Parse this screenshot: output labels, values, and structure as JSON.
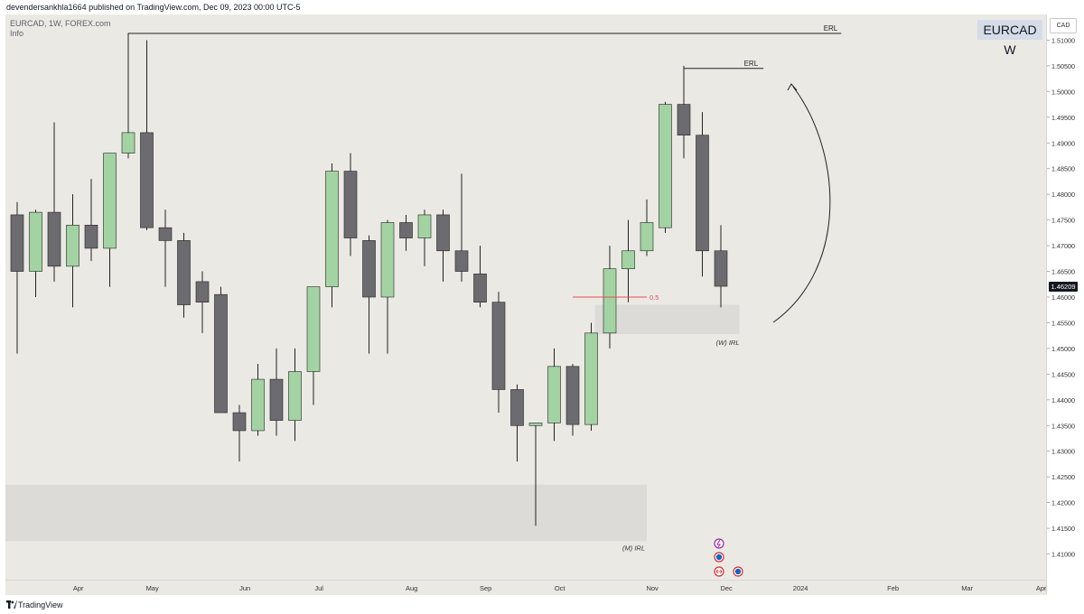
{
  "header": {
    "publish_line": "devendersankhla1664 published on TradingView.com, Dec 09, 2023 00:00 UTC-5"
  },
  "legend": {
    "symbol_line": "EURCAD, 1W, FOREX.com",
    "info_label": "Info"
  },
  "title_badge": "EURCAD W",
  "currency_button": "CAD",
  "last_price_label": "1.46209",
  "footer": {
    "brand": "TradingView"
  },
  "colors": {
    "up": "#a3d3a3",
    "down": "#6c6b70",
    "wick": "#222222",
    "zone": "#dcdbd7",
    "fib": "#e8504f"
  },
  "chart_data": {
    "type": "candlestick",
    "timeframe": "1W",
    "ylim": [
      1.405,
      1.515
    ],
    "y_ticks": [
      1.41,
      1.415,
      1.42,
      1.425,
      1.43,
      1.435,
      1.44,
      1.445,
      1.45,
      1.455,
      1.46,
      1.465,
      1.47,
      1.475,
      1.48,
      1.485,
      1.49,
      1.495,
      1.5,
      1.505,
      1.51
    ],
    "y_tick_labels": [
      "1.41000",
      "1.41500",
      "1.42000",
      "1.42500",
      "1.43000",
      "1.43500",
      "1.44000",
      "1.44500",
      "1.45000",
      "1.45500",
      "1.46000",
      "1.46500",
      "1.47000",
      "1.47500",
      "1.48000",
      "1.48500",
      "1.49000",
      "1.49500",
      "1.50000",
      "1.50500",
      "1.51000"
    ],
    "x_labels": [
      {
        "label": "Apr",
        "idx": 3.3
      },
      {
        "label": "May",
        "idx": 7.3
      },
      {
        "label": "Jun",
        "idx": 12.3
      },
      {
        "label": "Jul",
        "idx": 16.3
      },
      {
        "label": "Aug",
        "idx": 21.3
      },
      {
        "label": "Sep",
        "idx": 25.3
      },
      {
        "label": "Oct",
        "idx": 29.3
      },
      {
        "label": "Nov",
        "idx": 34.3
      },
      {
        "label": "Dec",
        "idx": 38.3
      },
      {
        "label": "2024",
        "idx": 42.3
      },
      {
        "label": "Feb",
        "idx": 47.3
      },
      {
        "label": "Mar",
        "idx": 51.3
      },
      {
        "label": "Apr",
        "idx": 55.3
      }
    ],
    "candles": [
      {
        "o": 1.476,
        "h": 1.4785,
        "l": 1.449,
        "c": 1.465
      },
      {
        "o": 1.465,
        "h": 1.477,
        "l": 1.46,
        "c": 1.4765
      },
      {
        "o": 1.4765,
        "h": 1.494,
        "l": 1.463,
        "c": 1.466
      },
      {
        "o": 1.466,
        "h": 1.48,
        "l": 1.458,
        "c": 1.474
      },
      {
        "o": 1.474,
        "h": 1.483,
        "l": 1.467,
        "c": 1.4695
      },
      {
        "o": 1.4695,
        "h": 1.488,
        "l": 1.462,
        "c": 1.488
      },
      {
        "o": 1.488,
        "h": 1.511,
        "l": 1.487,
        "c": 1.492
      },
      {
        "o": 1.492,
        "h": 1.51,
        "l": 1.473,
        "c": 1.4735
      },
      {
        "o": 1.4735,
        "h": 1.477,
        "l": 1.462,
        "c": 1.471
      },
      {
        "o": 1.471,
        "h": 1.4725,
        "l": 1.456,
        "c": 1.4585
      },
      {
        "o": 1.463,
        "h": 1.465,
        "l": 1.453,
        "c": 1.459
      },
      {
        "o": 1.4605,
        "h": 1.462,
        "l": 1.4375,
        "c": 1.4375
      },
      {
        "o": 1.4375,
        "h": 1.439,
        "l": 1.428,
        "c": 1.434
      },
      {
        "o": 1.434,
        "h": 1.447,
        "l": 1.433,
        "c": 1.444
      },
      {
        "o": 1.444,
        "h": 1.45,
        "l": 1.433,
        "c": 1.436
      },
      {
        "o": 1.436,
        "h": 1.45,
        "l": 1.432,
        "c": 1.4455
      },
      {
        "o": 1.4455,
        "h": 1.462,
        "l": 1.439,
        "c": 1.462
      },
      {
        "o": 1.462,
        "h": 1.486,
        "l": 1.458,
        "c": 1.4845
      },
      {
        "o": 1.4845,
        "h": 1.488,
        "l": 1.468,
        "c": 1.4715
      },
      {
        "o": 1.471,
        "h": 1.472,
        "l": 1.449,
        "c": 1.46
      },
      {
        "o": 1.46,
        "h": 1.475,
        "l": 1.449,
        "c": 1.4745
      },
      {
        "o": 1.4745,
        "h": 1.476,
        "l": 1.469,
        "c": 1.4715
      },
      {
        "o": 1.4715,
        "h": 1.477,
        "l": 1.466,
        "c": 1.476
      },
      {
        "o": 1.476,
        "h": 1.477,
        "l": 1.463,
        "c": 1.469
      },
      {
        "o": 1.469,
        "h": 1.484,
        "l": 1.463,
        "c": 1.465
      },
      {
        "o": 1.4645,
        "h": 1.47,
        "l": 1.458,
        "c": 1.459
      },
      {
        "o": 1.459,
        "h": 1.461,
        "l": 1.4375,
        "c": 1.442
      },
      {
        "o": 1.442,
        "h": 1.443,
        "l": 1.428,
        "c": 1.435
      },
      {
        "o": 1.435,
        "h": 1.4355,
        "l": 1.4155,
        "c": 1.4355
      },
      {
        "o": 1.4355,
        "h": 1.45,
        "l": 1.432,
        "c": 1.4465
      },
      {
        "o": 1.4465,
        "h": 1.447,
        "l": 1.433,
        "c": 1.4352
      },
      {
        "o": 1.4352,
        "h": 1.455,
        "l": 1.434,
        "c": 1.453
      },
      {
        "o": 1.453,
        "h": 1.47,
        "l": 1.45,
        "c": 1.4655
      },
      {
        "o": 1.4655,
        "h": 1.475,
        "l": 1.459,
        "c": 1.469
      },
      {
        "o": 1.469,
        "h": 1.479,
        "l": 1.468,
        "c": 1.4745
      },
      {
        "o": 1.4735,
        "h": 1.498,
        "l": 1.4725,
        "c": 1.4975
      },
      {
        "o": 1.4975,
        "h": 1.505,
        "l": 1.487,
        "c": 1.4915
      },
      {
        "o": 1.4915,
        "h": 1.496,
        "l": 1.464,
        "c": 1.469
      },
      {
        "o": 1.469,
        "h": 1.474,
        "l": 1.458,
        "c": 1.4621
      }
    ],
    "annotations": {
      "erl_high": {
        "label": "ERL",
        "price": 1.5113,
        "from_idx": 6,
        "to_idx": 44.5
      },
      "erl_mid": {
        "label": "ERL",
        "price": 1.5045,
        "from_idx": 36,
        "to_idx": 40.3
      },
      "fib": {
        "label": "0.5",
        "price": 1.46,
        "from_idx": 30,
        "to_idx": 34
      },
      "w_irl": {
        "label": "(W) IRL",
        "from_idx": 31.2,
        "to_idx": 39,
        "top": 1.4585,
        "bottom": 1.4528
      },
      "m_irl": {
        "label": "(M) IRL",
        "from_idx": -1,
        "to_idx": 34,
        "top": 1.4235,
        "bottom": 1.4125
      }
    }
  }
}
